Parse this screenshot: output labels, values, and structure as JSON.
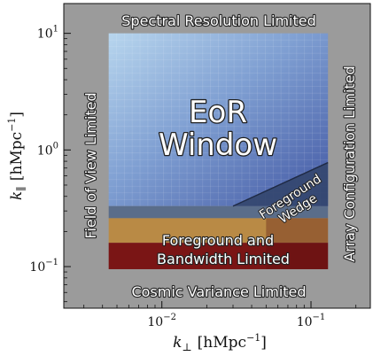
{
  "chart_data": {
    "type": "heatmap",
    "x": {
      "label_symbol": "k",
      "label_sub": "⊥",
      "label_units": "[hMpc",
      "label_units_exp": "−1",
      "label_units_close": "]",
      "scale": "log",
      "range": [
        0.0022,
        0.25
      ],
      "ticks": [
        {
          "base": "10",
          "exp": "−2",
          "value": 0.01
        },
        {
          "base": "10",
          "exp": "−1",
          "value": 0.1
        }
      ]
    },
    "y": {
      "label_symbol": "k",
      "label_sub": "∥",
      "label_units": "[hMpc",
      "label_units_exp": "−1",
      "label_units_close": "]",
      "scale": "log",
      "range": [
        0.044,
        18
      ],
      "ticks": [
        {
          "base": "10",
          "exp": "−1",
          "value": 0.1
        },
        {
          "base": "10",
          "exp": "0",
          "value": 1
        },
        {
          "base": "10",
          "exp": "1",
          "value": 10
        }
      ]
    },
    "data_extent": {
      "x": [
        0.0044,
        0.13
      ],
      "y": [
        0.095,
        10
      ]
    },
    "regions": {
      "top": "Spectral Resolution Limited",
      "bottom": "Cosmic Variance Limited",
      "left": "Field of View Limited",
      "right": "Array Configuration Limited",
      "window_line1": "EoR",
      "window_line2": "Window",
      "wedge_line1": "Foreground",
      "wedge_line2": "Wedge",
      "bandwidth_line1": "Foreground and",
      "bandwidth_line2": "Bandwidth Limited"
    },
    "wedge_boundary": [
      [
        0.03,
        0.33
      ],
      [
        0.13,
        0.78
      ]
    ],
    "bands": [
      {
        "name": "dark-edge",
        "y": [
          0.26,
          0.33
        ]
      },
      {
        "name": "tan",
        "y": [
          0.16,
          0.26
        ]
      },
      {
        "name": "red",
        "y": [
          0.095,
          0.16
        ]
      }
    ],
    "colors": {
      "background": "#9b9b9b",
      "window_light": "#a9c8e3",
      "window_dark": "#4a64ab",
      "wedge": "#34466f",
      "tan": "#b98a45",
      "red": "#7a1515"
    }
  }
}
